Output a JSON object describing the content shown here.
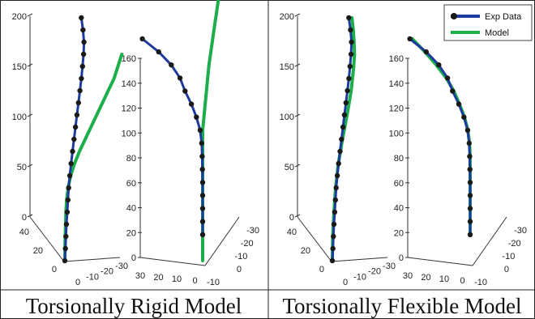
{
  "chart_data": [
    {
      "type": "line",
      "caption": "Torsionally Rigid Model",
      "views": [
        {
          "view": "3d-side",
          "z_ticks": [
            "0",
            "50",
            "100",
            "150",
            "200"
          ],
          "depth_ticks": [
            "40",
            "20",
            "0"
          ],
          "width_ticks": [
            "0",
            "-10",
            "-20",
            "-30"
          ],
          "series": [
            {
              "name": "Exp Data",
              "z": [
                0,
                10,
                20,
                30,
                40,
                50,
                60,
                70,
                80,
                90,
                100,
                110,
                120,
                130,
                140,
                150,
                160,
                170,
                180,
                190,
                200
              ],
              "u": [
                0,
                0.2,
                0.4,
                0.6,
                0.9,
                1.2,
                1.5,
                2,
                2.6,
                3.3,
                4,
                4.7,
                5.4,
                6.1,
                6.8,
                7.5,
                8,
                8.5,
                8.6,
                8,
                7
              ]
            },
            {
              "name": "Model",
              "z": [
                0,
                10,
                20,
                30,
                40,
                50,
                60,
                70,
                80,
                90,
                100,
                110,
                120,
                130,
                140,
                150,
                160,
                170
              ],
              "u": [
                0,
                0,
                0,
                0.1,
                0.2,
                0.5,
                1.2,
                2.5,
                4.5,
                7,
                10,
                13,
                16,
                19,
                22,
                25,
                27,
                29
              ]
            }
          ]
        },
        {
          "view": "3d-front",
          "z_ticks": [
            "0",
            "20",
            "40",
            "60",
            "80",
            "100",
            "120",
            "140",
            "160"
          ],
          "depth_ticks": [
            "30",
            "20",
            "10",
            "0",
            "-10"
          ],
          "width_ticks": [
            "-30",
            "-20",
            "-10",
            "0"
          ],
          "series": [
            {
              "name": "Exp Data",
              "z": [
                20,
                30,
                40,
                50,
                60,
                70,
                80,
                90,
                100,
                110,
                120,
                130,
                140,
                150,
                160,
                170
              ],
              "u": [
                0,
                0,
                0,
                0,
                0,
                0.2,
                0.4,
                0.8,
                2,
                5,
                9,
                14,
                18,
                25,
                35,
                48
              ]
            },
            {
              "name": "Model",
              "z": [
                0,
                20,
                40,
                60,
                80,
                100,
                110,
                120,
                130,
                140,
                150,
                160,
                170,
                180,
                190,
                200
              ],
              "u": [
                0,
                0,
                0,
                0,
                0,
                0,
                -1,
                -2,
                -3,
                -4,
                -5,
                -6.5,
                -8,
                -9.5,
                -11,
                -12.5
              ]
            }
          ]
        }
      ]
    },
    {
      "type": "line",
      "caption": "Torsionally Flexible Model",
      "legend": {
        "position": "top-right",
        "entries": [
          {
            "name": "Exp Data",
            "color": "#1e3a9e",
            "marker": "circle"
          },
          {
            "name": "Model",
            "color": "#1cae4a",
            "marker": "none"
          }
        ]
      },
      "views": [
        {
          "view": "3d-side",
          "z_ticks": [
            "0",
            "50",
            "100",
            "150",
            "200"
          ],
          "depth_ticks": [
            "40",
            "20",
            "0"
          ],
          "width_ticks": [
            "0",
            "-10",
            "-20",
            "-30"
          ],
          "series": [
            {
              "name": "Exp Data",
              "z": [
                0,
                10,
                20,
                30,
                40,
                50,
                60,
                70,
                80,
                90,
                100,
                110,
                120,
                130,
                140,
                150,
                160,
                170,
                180,
                190,
                200
              ],
              "u": [
                0,
                0.2,
                0.4,
                0.6,
                0.9,
                1.2,
                1.5,
                2,
                2.6,
                3.3,
                4,
                4.7,
                5.4,
                6.1,
                6.8,
                7.5,
                8,
                8.5,
                8.6,
                8,
                7
              ]
            },
            {
              "name": "Model",
              "z": [
                0,
                20,
                40,
                60,
                80,
                100,
                120,
                140,
                160,
                170,
                180,
                190,
                200
              ],
              "u": [
                0,
                0,
                0.5,
                1.2,
                2.5,
                4.5,
                6.8,
                8.8,
                10,
                10.3,
                10,
                9.5,
                8.7
              ]
            }
          ]
        },
        {
          "view": "3d-front",
          "z_ticks": [
            "0",
            "20",
            "40",
            "60",
            "80",
            "100",
            "120",
            "140",
            "160"
          ],
          "depth_ticks": [
            "30",
            "20",
            "10",
            "0",
            "-10"
          ],
          "width_ticks": [
            "-30",
            "-20",
            "-10",
            "0"
          ],
          "series": [
            {
              "name": "Exp Data",
              "z": [
                20,
                30,
                40,
                50,
                60,
                70,
                80,
                90,
                100,
                110,
                120,
                130,
                140,
                150,
                160,
                170
              ],
              "u": [
                0,
                0,
                0,
                0,
                0,
                0.2,
                0.4,
                0.8,
                2,
                5,
                9,
                14,
                18,
                25,
                35,
                48
              ]
            },
            {
              "name": "Model",
              "z": [
                20,
                40,
                60,
                80,
                90,
                100,
                110,
                120,
                130,
                140,
                150,
                160,
                170
              ],
              "u": [
                0,
                0,
                0,
                0,
                0.5,
                1.8,
                4.5,
                8.5,
                13,
                19,
                27,
                36,
                46
              ]
            }
          ]
        }
      ]
    }
  ],
  "colors": {
    "exp": "#1e3a9e",
    "marker": "#1a1a1a",
    "model": "#1cae4a"
  }
}
